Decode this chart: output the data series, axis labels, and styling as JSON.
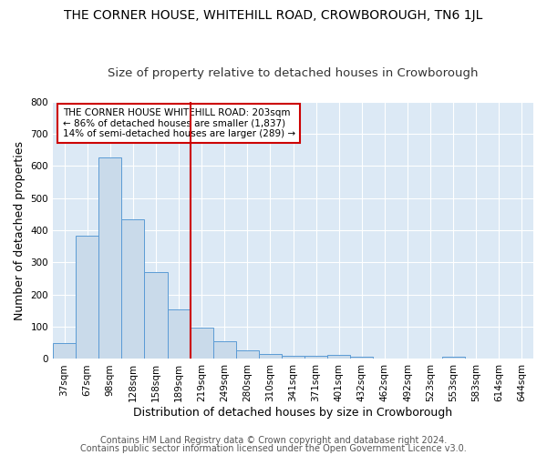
{
  "title": "THE CORNER HOUSE, WHITEHILL ROAD, CROWBOROUGH, TN6 1JL",
  "subtitle": "Size of property relative to detached houses in Crowborough",
  "xlabel": "Distribution of detached houses by size in Crowborough",
  "ylabel": "Number of detached properties",
  "categories": [
    "37sqm",
    "67sqm",
    "98sqm",
    "128sqm",
    "158sqm",
    "189sqm",
    "219sqm",
    "249sqm",
    "280sqm",
    "310sqm",
    "341sqm",
    "371sqm",
    "401sqm",
    "432sqm",
    "462sqm",
    "492sqm",
    "523sqm",
    "553sqm",
    "583sqm",
    "614sqm",
    "644sqm"
  ],
  "values": [
    50,
    383,
    627,
    435,
    270,
    155,
    97,
    55,
    28,
    15,
    10,
    10,
    12,
    7,
    0,
    0,
    0,
    8,
    0,
    0,
    0
  ],
  "bar_color": "#c9daea",
  "bar_edge_color": "#5b9bd5",
  "vline_x": 5.5,
  "vline_color": "#cc0000",
  "annotation_text": "THE CORNER HOUSE WHITEHILL ROAD: 203sqm\n← 86% of detached houses are smaller (1,837)\n14% of semi-detached houses are larger (289) →",
  "annotation_box_color": "#ffffff",
  "annotation_box_edge": "#cc0000",
  "footnote1": "Contains HM Land Registry data © Crown copyright and database right 2024.",
  "footnote2": "Contains public sector information licensed under the Open Government Licence v3.0.",
  "ylim": [
    0,
    800
  ],
  "yticks": [
    0,
    100,
    200,
    300,
    400,
    500,
    600,
    700,
    800
  ],
  "background_color": "#ffffff",
  "plot_bg_color": "#dce9f5",
  "grid_color": "#ffffff",
  "title_fontsize": 10,
  "subtitle_fontsize": 9.5,
  "axis_label_fontsize": 9,
  "tick_fontsize": 7.5,
  "annotation_fontsize": 7.5,
  "footnote_fontsize": 7
}
